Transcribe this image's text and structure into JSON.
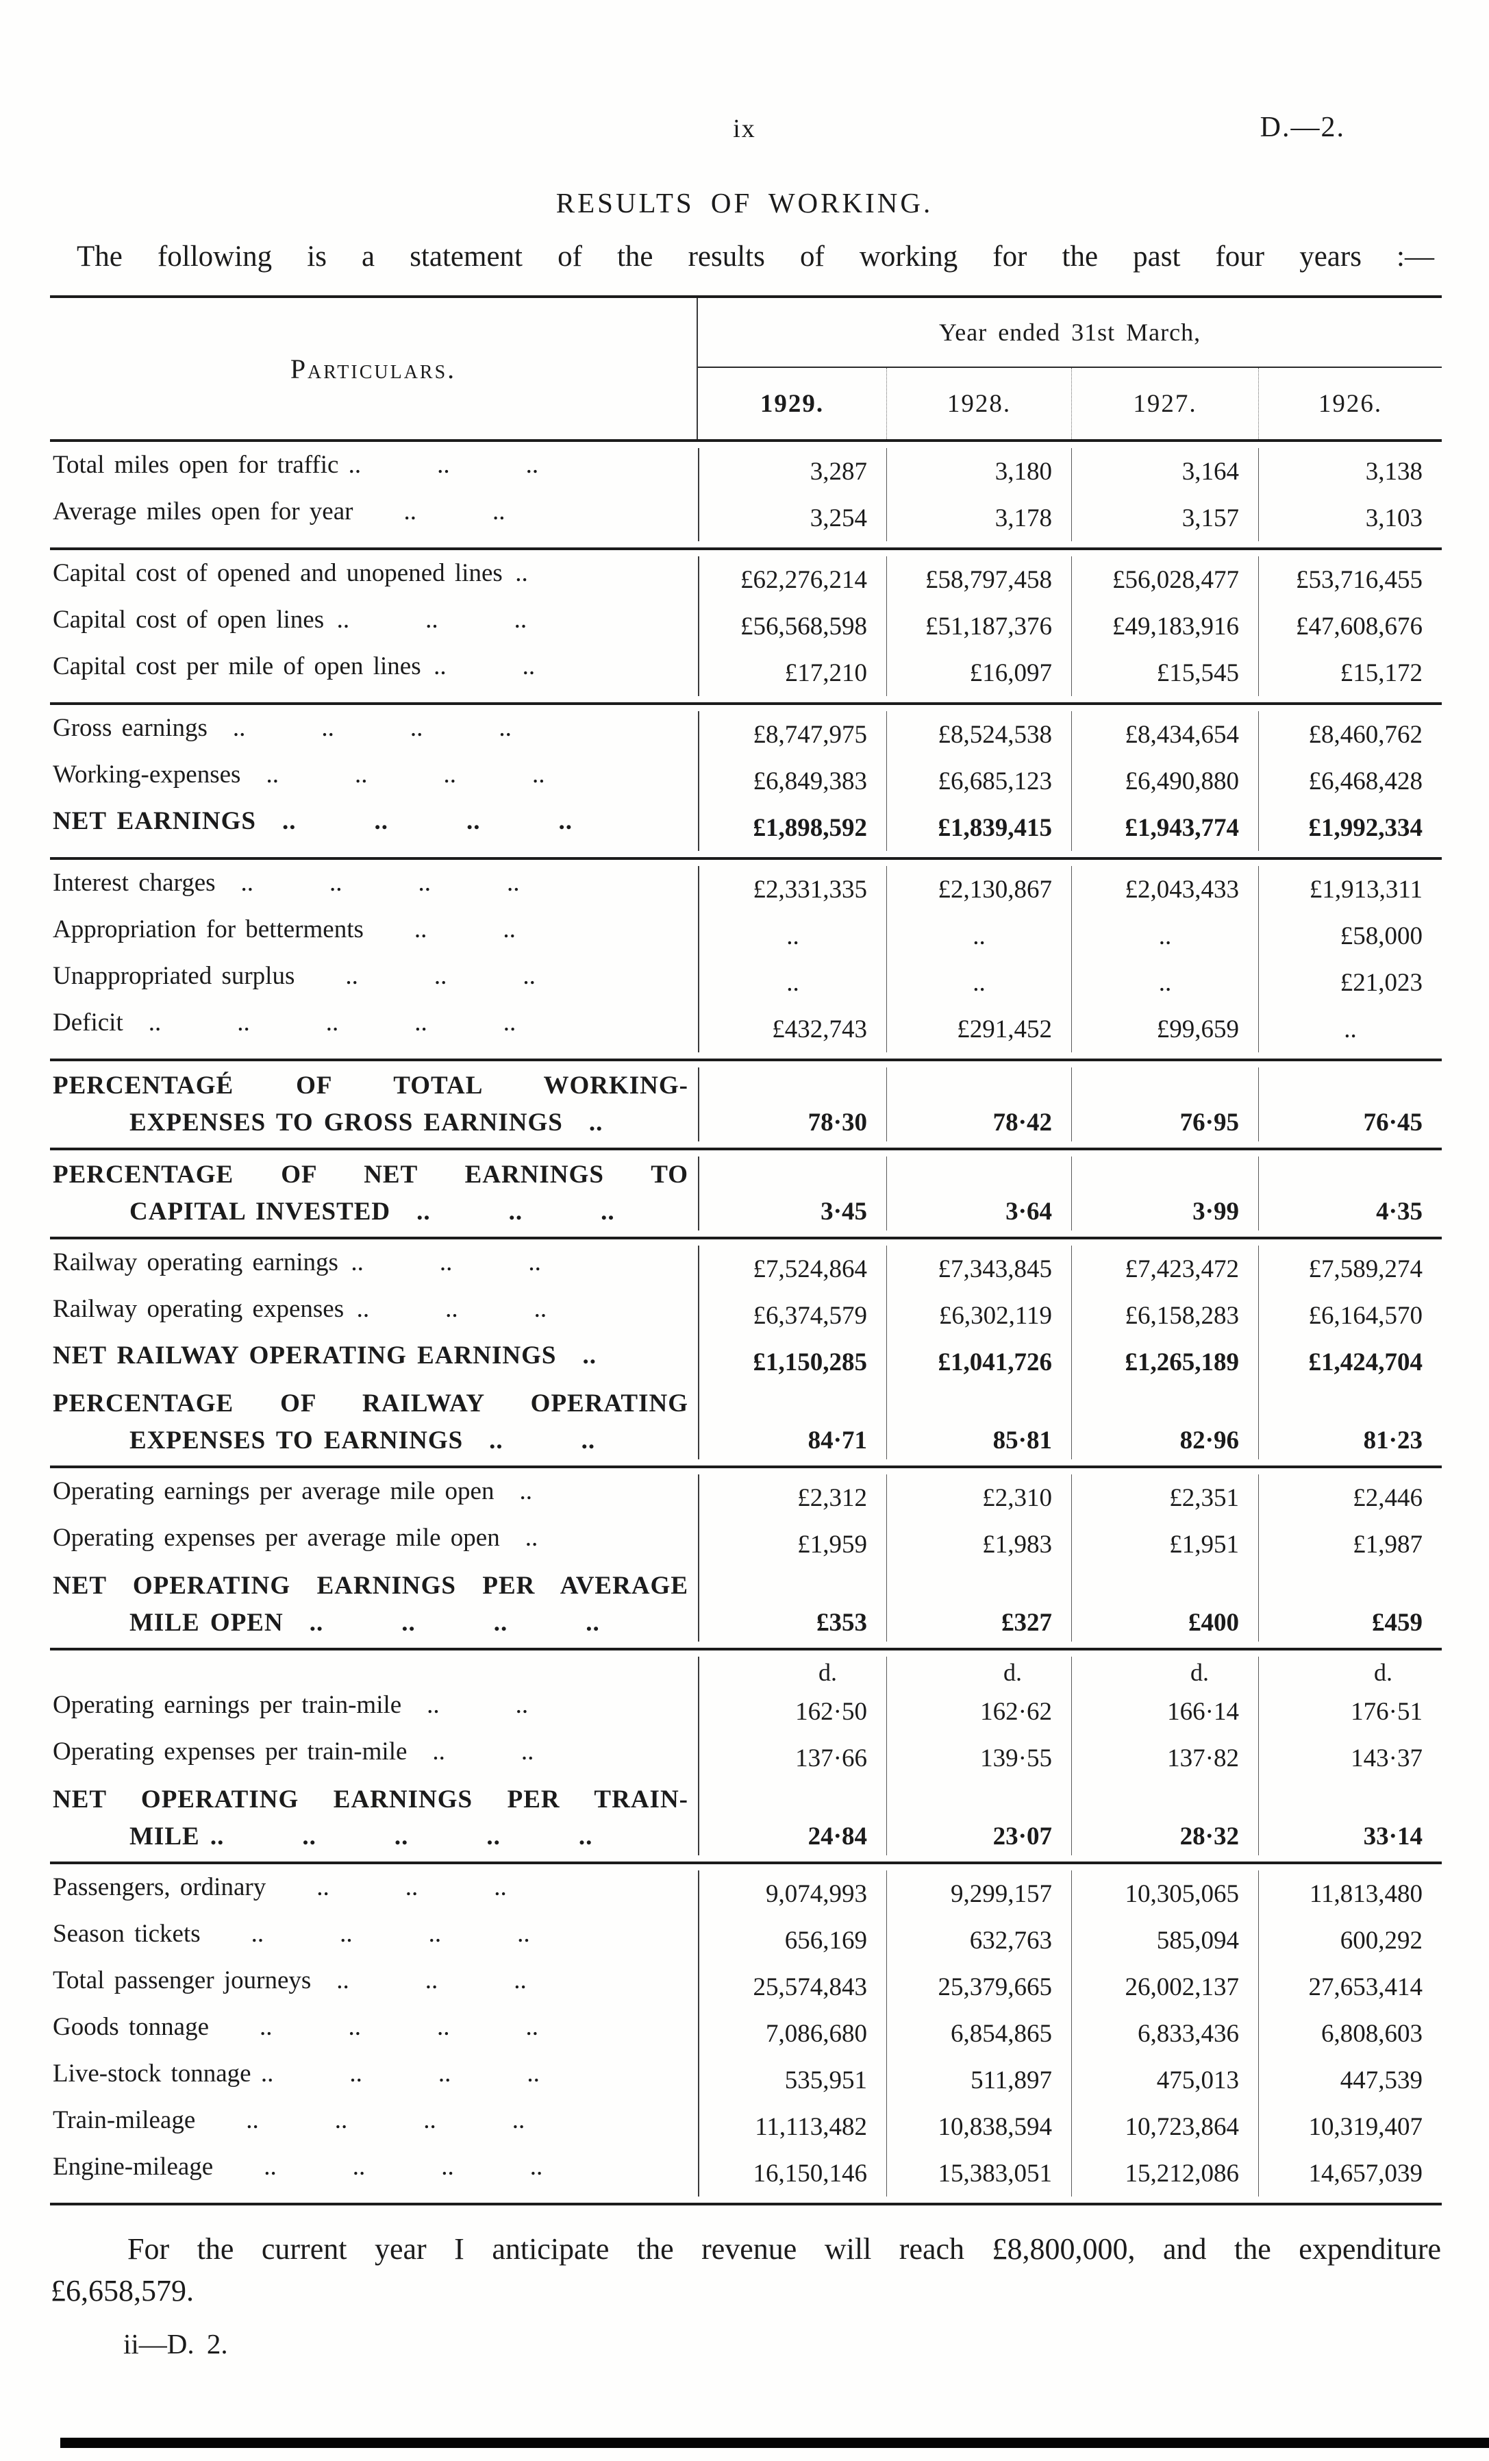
{
  "page": {
    "page_number": "ix",
    "doc_ref": "D.—2.",
    "title": "RESULTS OF WORKING.",
    "intro": "The following is a statement of the results of working for the past four years :—",
    "footer_line1": "For the current year I anticipate the revenue will reach £8,800,000, and the expenditure",
    "footer_line2": "£6,658,579.",
    "signature": "ii—D. 2."
  },
  "table": {
    "particulars_header": "Particulars.",
    "span_header": "Year ended 31st March,",
    "years": [
      "1929.",
      "1928.",
      "1927.",
      "1926."
    ],
    "groups": [
      {
        "rows": [
          {
            "label": "Total miles open for traffic ..   ..   ..",
            "values": [
              "3,287",
              "3,180",
              "3,164",
              "3,138"
            ]
          },
          {
            "label": "Average miles open for year  ..   ..",
            "values": [
              "3,254",
              "3,178",
              "3,157",
              "3,103"
            ]
          }
        ]
      },
      {
        "rows": [
          {
            "label": "Capital cost of opened and unopened lines ..",
            "values": [
              "£62,276,214",
              "£58,797,458",
              "£56,028,477",
              "£53,716,455"
            ]
          },
          {
            "label": "Capital cost of open lines ..   ..   ..",
            "values": [
              "£56,568,598",
              "£51,187,376",
              "£49,183,916",
              "£47,608,676"
            ]
          },
          {
            "label": "Capital cost per mile of open lines ..   ..",
            "values": [
              "£17,210",
              "£16,097",
              "£15,545",
              "£15,172"
            ]
          }
        ]
      },
      {
        "rows": [
          {
            "label": "Gross earnings ..   ..   ..   ..",
            "values": [
              "£8,747,975",
              "£8,524,538",
              "£8,434,654",
              "£8,460,762"
            ]
          },
          {
            "label": "Working-expenses ..   ..   ..   ..",
            "values": [
              "£6,849,383",
              "£6,685,123",
              "£6,490,880",
              "£6,468,428"
            ]
          },
          {
            "label": "NET EARNINGS ..   ..   ..   ..",
            "bold": true,
            "values": [
              "£1,898,592",
              "£1,839,415",
              "£1,943,774",
              "£1,992,334"
            ]
          }
        ]
      },
      {
        "rows": [
          {
            "label": "Interest charges ..   ..   ..   ..",
            "values": [
              "£2,331,335",
              "£2,130,867",
              "£2,043,433",
              "£1,913,311"
            ]
          },
          {
            "label": "Appropriation for betterments  ..   ..",
            "values": [
              "..",
              "..",
              "..",
              "£58,000"
            ]
          },
          {
            "label": "Unappropriated surplus  ..   ..   ..",
            "values": [
              "..",
              "..",
              "..",
              "£21,023"
            ]
          },
          {
            "label": "Deficit ..   ..   ..   ..   ..",
            "values": [
              "£432,743",
              "£291,452",
              "£99,659",
              ".."
            ]
          }
        ]
      },
      {
        "rows": [
          {
            "label": "PERCENTAGÉ OF TOTAL WORKING-",
            "label2": "EXPENSES TO GROSS EARNINGS ..",
            "bold": true,
            "values": [
              "78·30",
              "78·42",
              "76·95",
              "76·45"
            ]
          }
        ]
      },
      {
        "rows": [
          {
            "label": "PERCENTAGE OF NET EARNINGS TO",
            "label2": "CAPITAL INVESTED ..   ..   ..",
            "bold": true,
            "values": [
              "3·45",
              "3·64",
              "3·99",
              "4·35"
            ]
          }
        ]
      },
      {
        "rows": [
          {
            "label": "Railway operating earnings ..   ..   ..",
            "values": [
              "£7,524,864",
              "£7,343,845",
              "£7,423,472",
              "£7,589,274"
            ]
          },
          {
            "label": "Railway operating expenses ..   ..   ..",
            "values": [
              "£6,374,579",
              "£6,302,119",
              "£6,158,283",
              "£6,164,570"
            ]
          },
          {
            "label": "NET RAILWAY OPERATING EARNINGS ..",
            "bold": true,
            "values": [
              "£1,150,285",
              "£1,041,726",
              "£1,265,189",
              "£1,424,704"
            ]
          },
          {
            "label": "PERCENTAGE OF RAILWAY OPERATING",
            "label2": "EXPENSES TO EARNINGS ..   ..",
            "bold": true,
            "values": [
              "84·71",
              "85·81",
              "82·96",
              "81·23"
            ]
          }
        ]
      },
      {
        "rows": [
          {
            "label": "Operating earnings per average mile open ..",
            "values": [
              "£2,312",
              "£2,310",
              "£2,351",
              "£2,446"
            ]
          },
          {
            "label": "Operating expenses per average mile open ..",
            "values": [
              "£1,959",
              "£1,983",
              "£1,951",
              "£1,987"
            ]
          },
          {
            "label": "NET OPERATING EARNINGS PER AVERAGE",
            "label2": "MILE OPEN ..   ..   ..   ..",
            "bold": true,
            "values": [
              "£353",
              "£327",
              "£400",
              "£459"
            ]
          }
        ]
      },
      {
        "rows": [
          {
            "label": "",
            "unit": true,
            "values": [
              "d.",
              "d.",
              "d.",
              "d."
            ]
          },
          {
            "label": "Operating earnings per train-mile ..   ..",
            "values": [
              "162·50",
              "162·62",
              "166·14",
              "176·51"
            ]
          },
          {
            "label": "Operating expenses per train-mile ..   ..",
            "values": [
              "137·66",
              "139·55",
              "137·82",
              "143·37"
            ]
          },
          {
            "label": "NET OPERATING EARNINGS PER TRAIN-",
            "label2": "MILE ..   ..   ..   ..   ..",
            "bold": true,
            "values": [
              "24·84",
              "23·07",
              "28·32",
              "33·14"
            ]
          }
        ]
      },
      {
        "rows": [
          {
            "label": "Passengers, ordinary  ..   ..   ..",
            "values": [
              "9,074,993",
              "9,299,157",
              "10,305,065",
              "11,813,480"
            ]
          },
          {
            "label": "Season tickets  ..   ..   ..   ..",
            "values": [
              "656,169",
              "632,763",
              "585,094",
              "600,292"
            ]
          },
          {
            "label": "Total passenger journeys ..   ..   ..",
            "values": [
              "25,574,843",
              "25,379,665",
              "26,002,137",
              "27,653,414"
            ]
          },
          {
            "label": "Goods tonnage  ..   ..   ..   ..",
            "values": [
              "7,086,680",
              "6,854,865",
              "6,833,436",
              "6,808,603"
            ]
          },
          {
            "label": "Live-stock tonnage ..   ..   ..   ..",
            "values": [
              "535,951",
              "511,897",
              "475,013",
              "447,539"
            ]
          },
          {
            "label": "Train-mileage  ..   ..   ..   ..",
            "values": [
              "11,113,482",
              "10,838,594",
              "10,723,864",
              "10,319,407"
            ]
          },
          {
            "label": "Engine-mileage  ..   ..   ..   ..",
            "values": [
              "16,150,146",
              "15,383,051",
              "15,212,086",
              "14,657,039"
            ]
          }
        ]
      }
    ]
  }
}
